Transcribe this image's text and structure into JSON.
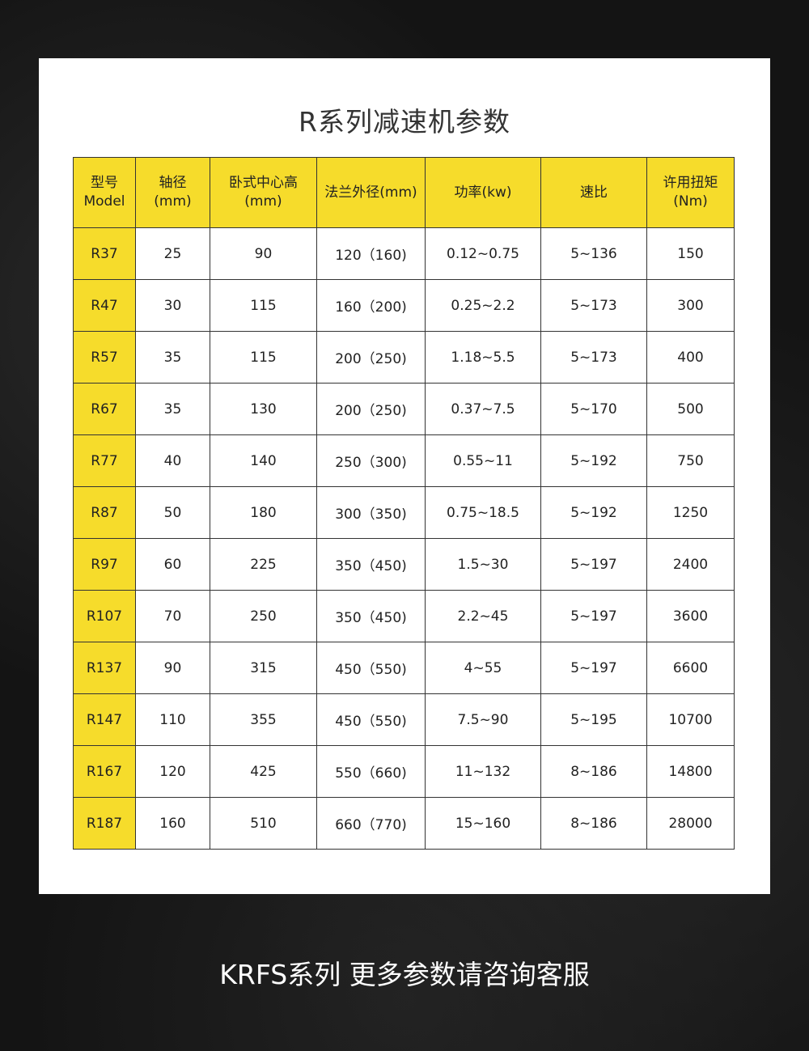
{
  "title": "R系列减速机参数",
  "colors": {
    "header_bg": "#f6dc2b",
    "model_bg": "#f6dc2b"
  },
  "table": {
    "headers": [
      [
        "型号",
        "Model"
      ],
      [
        "轴径",
        "(mm)"
      ],
      [
        "卧式中心高",
        "(mm)"
      ],
      [
        "法兰外径(mm)",
        ""
      ],
      [
        "功率(kw)",
        ""
      ],
      [
        "速比",
        ""
      ],
      [
        "许用扭矩",
        "(Nm)"
      ]
    ],
    "rows": [
      [
        "R37",
        "25",
        "90",
        "120（160)",
        "0.12~0.75",
        "5~136",
        "150"
      ],
      [
        "R47",
        "30",
        "115",
        "160（200)",
        "0.25~2.2",
        "5~173",
        "300"
      ],
      [
        "R57",
        "35",
        "115",
        "200（250)",
        "1.18~5.5",
        "5~173",
        "400"
      ],
      [
        "R67",
        "35",
        "130",
        "200（250)",
        "0.37~7.5",
        "5~170",
        "500"
      ],
      [
        "R77",
        "40",
        "140",
        "250（300)",
        "0.55~11",
        "5~192",
        "750"
      ],
      [
        "R87",
        "50",
        "180",
        "300（350)",
        "0.75~18.5",
        "5~192",
        "1250"
      ],
      [
        "R97",
        "60",
        "225",
        "350（450)",
        "1.5~30",
        "5~197",
        "2400"
      ],
      [
        "R107",
        "70",
        "250",
        "350（450)",
        "2.2~45",
        "5~197",
        "3600"
      ],
      [
        "R137",
        "90",
        "315",
        "450（550)",
        "4~55",
        "5~197",
        "6600"
      ],
      [
        "R147",
        "110",
        "355",
        "450（550)",
        "7.5~90",
        "5~195",
        "10700"
      ],
      [
        "R167",
        "120",
        "425",
        "550（660)",
        "11~132",
        "8~186",
        "14800"
      ],
      [
        "R187",
        "160",
        "510",
        "660（770)",
        "15~160",
        "8~186",
        "28000"
      ]
    ]
  },
  "footer": "KRFS系列 更多参数请咨询客服"
}
